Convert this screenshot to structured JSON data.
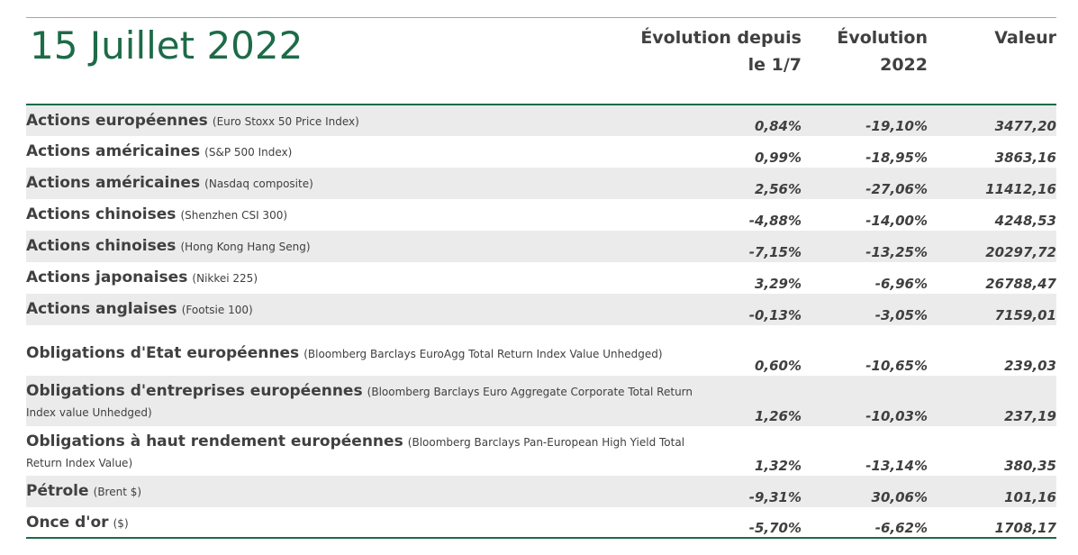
{
  "title": "15 Juillet 2022",
  "headers": {
    "col1_line1": "Évolution depuis",
    "col1_line2": "le 1/7",
    "col2_line1": "Évolution",
    "col2_line2": "2022",
    "col3": "Valeur"
  },
  "rows": [
    {
      "label": "Actions européennes",
      "note": "(Euro Stoxx 50 Price Index)",
      "since": "0,84%",
      "ytd": "-19,10%",
      "value": "3477,20"
    },
    {
      "label": "Actions américaines",
      "note": "(S&P 500 Index)",
      "since": "0,99%",
      "ytd": "-18,95%",
      "value": "3863,16"
    },
    {
      "label": "Actions américaines",
      "note": "(Nasdaq composite)",
      "since": "2,56%",
      "ytd": "-27,06%",
      "value": "11412,16"
    },
    {
      "label": "Actions chinoises",
      "note": "(Shenzhen CSI 300)",
      "since": "-4,88%",
      "ytd": "-14,00%",
      "value": "4248,53"
    },
    {
      "label": "Actions chinoises",
      "note": "(Hong Kong Hang Seng)",
      "since": "-7,15%",
      "ytd": "-13,25%",
      "value": "20297,72"
    },
    {
      "label": "Actions japonaises",
      "note": "(Nikkei 225)",
      "since": "3,29%",
      "ytd": "-6,96%",
      "value": "26788,47"
    },
    {
      "label": "Actions anglaises",
      "note": "(Footsie 100)",
      "since": "-0,13%",
      "ytd": "-3,05%",
      "value": "7159,01"
    },
    {
      "label": "Obligations d'Etat européennes",
      "note": "(Bloomberg Barclays EuroAgg Total Return Index Value Unhedged)",
      "since": "0,60%",
      "ytd": "-10,65%",
      "value": "239,03"
    },
    {
      "label": "Obligations d'entreprises européennes",
      "note": "(Bloomberg Barclays Euro Aggregate Corporate Total Return Index value Unhedged)",
      "since": "1,26%",
      "ytd": "-10,03%",
      "value": "237,19"
    },
    {
      "label": "Obligations à haut rendement européennes",
      "note": "(Bloomberg Barclays Pan-European High Yield Total Return Index Value)",
      "since": "1,32%",
      "ytd": "-13,14%",
      "value": "380,35"
    },
    {
      "label": "Pétrole",
      "note": "(Brent $)",
      "since": "-9,31%",
      "ytd": "30,06%",
      "value": "101,16"
    },
    {
      "label": "Once d'or",
      "note": "($)",
      "since": "-5,70%",
      "ytd": "-6,62%",
      "value": "1708,17"
    }
  ]
}
